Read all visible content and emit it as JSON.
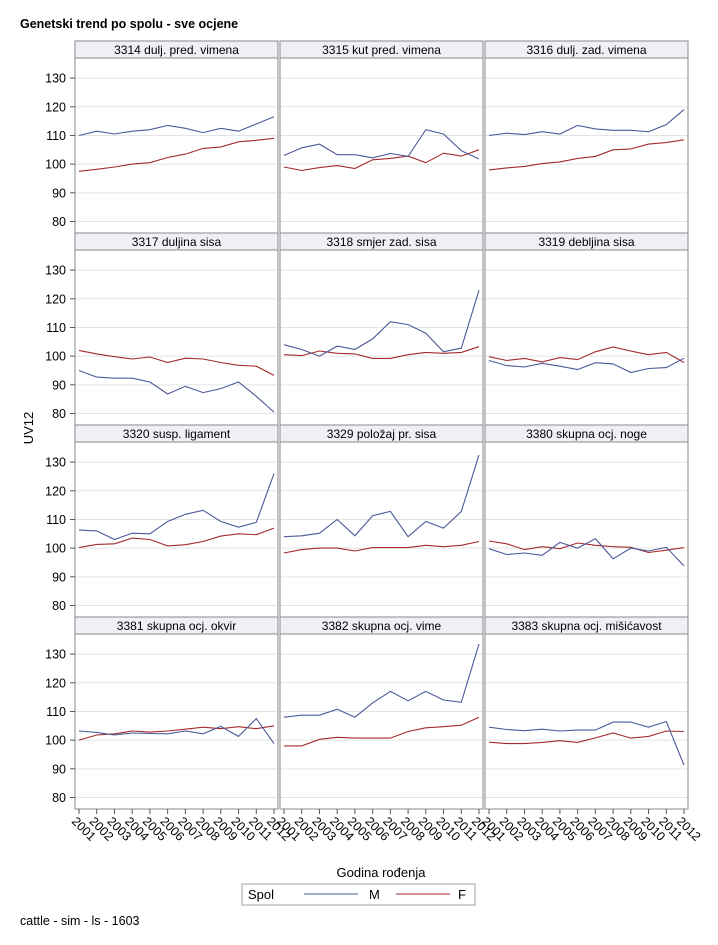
{
  "page": {
    "title": "Genetski trend po spolu - sve ocjene",
    "footer": "cattle - sim - ls - 1603"
  },
  "axes": {
    "ylabel": "UV12",
    "xlabel": "Godina rođenja",
    "yticks": [
      80,
      90,
      100,
      110,
      120,
      130
    ],
    "xticks": [
      "2001",
      "2002",
      "2003",
      "2004",
      "2005",
      "2006",
      "2007",
      "2008",
      "2009",
      "2010",
      "2011",
      "2012"
    ]
  },
  "legend": {
    "title": "Spol",
    "items": [
      {
        "label": "M",
        "color": "#4a5a99"
      },
      {
        "label": "F",
        "color": "#a52a2a"
      }
    ]
  },
  "colors": {
    "male": "#4a5a99",
    "female": "#a52a2a",
    "panel_header_bg": "#eef0f5",
    "grid": "#e4e4e4",
    "frame": "#8a8a8a"
  },
  "chart_data": {
    "type": "line",
    "layout": "panel-grid",
    "x": [
      2001,
      2002,
      2003,
      2004,
      2005,
      2006,
      2007,
      2008,
      2009,
      2010,
      2011,
      2012
    ],
    "ylim": [
      76,
      137
    ],
    "grid": true,
    "legend_position": "bottom",
    "panels": [
      {
        "title": "3314 dulj. pred. vimena",
        "M": [
          110,
          111.5,
          110.5,
          111.5,
          112,
          113.5,
          112.5,
          111,
          112.5,
          111.5,
          114,
          116.5
        ],
        "F": [
          97.5,
          98.2,
          99,
          100,
          100.5,
          102.3,
          103.5,
          105.5,
          106,
          107.8,
          108.3,
          109
        ]
      },
      {
        "title": "3315 kut pred. vimena",
        "M": [
          103,
          105.7,
          107,
          103.3,
          103.3,
          102.2,
          103.7,
          102.7,
          112,
          110.5,
          104.7,
          101.8
        ],
        "F": [
          99,
          97.8,
          98.8,
          99.5,
          98.5,
          101.5,
          102,
          102.8,
          100.5,
          103.8,
          102.8,
          105
        ]
      },
      {
        "title": "3316 dulj. zad. vimena",
        "M": [
          110,
          110.8,
          110.3,
          111.3,
          110.5,
          113.5,
          112.3,
          111.8,
          111.8,
          111.3,
          113.8,
          119
        ],
        "F": [
          98,
          98.7,
          99.2,
          100.2,
          100.8,
          102,
          102.7,
          105,
          105.3,
          107,
          107.5,
          108.5
        ]
      },
      {
        "title": "3317 duljina sisa",
        "M": [
          95,
          92.7,
          92.3,
          92.3,
          91,
          86.8,
          89.5,
          87.3,
          88.7,
          91,
          86,
          80.5
        ],
        "F": [
          102,
          100.8,
          99.8,
          99,
          99.7,
          97.8,
          99.3,
          99,
          97.8,
          96.8,
          96.5,
          93.3
        ]
      },
      {
        "title": "3318 smjer zad. sisa",
        "M": [
          104,
          102.3,
          100,
          103.5,
          102.3,
          106,
          112,
          111,
          108,
          101.5,
          102.8,
          123
        ],
        "F": [
          100.5,
          100.2,
          101.8,
          101,
          100.8,
          99.2,
          99.2,
          100.5,
          101.3,
          101,
          101.3,
          103.3
        ]
      },
      {
        "title": "3319 debljina sisa",
        "M": [
          98.5,
          96.7,
          96.2,
          97.5,
          96.5,
          95.3,
          97.7,
          97.3,
          94.3,
          95.7,
          96,
          99.3
        ],
        "F": [
          99.8,
          98.5,
          99.2,
          98,
          99.5,
          98.8,
          101.5,
          103.2,
          101.8,
          100.5,
          101.3,
          97.8
        ]
      },
      {
        "title": "3320 susp. ligament",
        "M": [
          106.3,
          106,
          103,
          105.2,
          105,
          109.3,
          111.8,
          113.2,
          109.3,
          107.3,
          109,
          126
        ],
        "F": [
          100.2,
          101.3,
          101.5,
          103.5,
          103,
          100.8,
          101.2,
          102.3,
          104.2,
          105,
          104.7,
          107
        ]
      },
      {
        "title": "3329 položaj pr. sisa",
        "M": [
          104,
          104.3,
          105.2,
          110,
          104.3,
          111.3,
          112.8,
          104,
          109.3,
          107,
          112.8,
          132.5
        ],
        "F": [
          98.3,
          99.5,
          100,
          100,
          99,
          100.2,
          100.2,
          100.2,
          101,
          100.5,
          101,
          102.3
        ]
      },
      {
        "title": "3380 skupna ocj. noge",
        "M": [
          99.8,
          97.8,
          98.3,
          97.5,
          102,
          100,
          103.3,
          96.3,
          100,
          99,
          100.3,
          93.8
        ],
        "F": [
          102.5,
          101.5,
          99.5,
          100.5,
          99.8,
          101.8,
          101,
          100.5,
          100.3,
          98.5,
          99.3,
          100.2
        ]
      },
      {
        "title": "3381 skupna ocj. okvir",
        "M": [
          103.2,
          102.7,
          101.8,
          102.5,
          102.3,
          102.2,
          103.2,
          102.2,
          104.8,
          101.3,
          107.5,
          98.8
        ],
        "F": [
          100,
          101.8,
          102.2,
          103.2,
          102.8,
          103.2,
          103.8,
          104.5,
          104,
          104.7,
          104,
          105
        ]
      },
      {
        "title": "3382 skupna ocj. vime",
        "M": [
          108,
          108.7,
          108.7,
          110.8,
          108,
          113,
          117,
          113.7,
          117,
          114,
          113.2,
          133.5
        ],
        "F": [
          98,
          98,
          100.3,
          101,
          100.7,
          100.7,
          100.7,
          103,
          104.3,
          104.7,
          105.2,
          108
        ]
      },
      {
        "title": "3383 skupna ocj. mišićavost",
        "M": [
          104.5,
          103.7,
          103.3,
          103.8,
          103.2,
          103.5,
          103.5,
          106.3,
          106.3,
          104.5,
          106.5,
          91.3
        ],
        "F": [
          99.3,
          98.8,
          98.8,
          99.2,
          99.8,
          99.2,
          100.8,
          102.5,
          100.7,
          101.3,
          103.2,
          103
        ]
      }
    ]
  }
}
